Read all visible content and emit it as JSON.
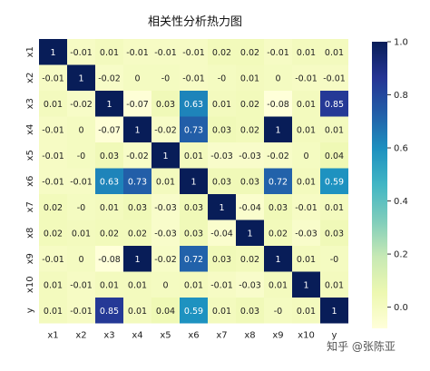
{
  "chart_data": {
    "type": "heatmap",
    "title": "相关性分析热力图",
    "xlabels": [
      "x1",
      "x2",
      "x3",
      "x4",
      "x5",
      "x6",
      "x7",
      "x8",
      "x9",
      "x10",
      "y"
    ],
    "ylabels": [
      "x1",
      "x2",
      "x3",
      "x4",
      "x5",
      "x6",
      "x7",
      "x8",
      "x9",
      "x10",
      "y"
    ],
    "values": [
      [
        1,
        -0.01,
        0.01,
        -0.01,
        -0.01,
        -0.01,
        0.02,
        0.02,
        -0.01,
        0.01,
        0.01
      ],
      [
        -0.01,
        1,
        -0.02,
        0,
        0,
        -0.01,
        0,
        0.01,
        0,
        -0.01,
        -0.01
      ],
      [
        0.01,
        -0.02,
        1,
        -0.07,
        0.03,
        0.63,
        0.01,
        0.02,
        -0.08,
        0.01,
        0.85
      ],
      [
        -0.01,
        0,
        -0.07,
        1,
        -0.02,
        0.73,
        0.03,
        0.02,
        1,
        0.01,
        0.01
      ],
      [
        -0.01,
        0,
        0.03,
        -0.02,
        1,
        0.01,
        -0.03,
        -0.03,
        -0.02,
        0,
        0.04
      ],
      [
        -0.01,
        -0.01,
        0.63,
        0.73,
        0.01,
        1,
        0.03,
        0.03,
        0.72,
        0.01,
        0.59
      ],
      [
        0.02,
        0,
        0.01,
        0.03,
        -0.03,
        0.03,
        1,
        -0.04,
        0.03,
        -0.01,
        0.01
      ],
      [
        0.02,
        0.01,
        0.02,
        0.02,
        -0.03,
        0.03,
        -0.04,
        1,
        0.02,
        -0.03,
        0.03
      ],
      [
        -0.01,
        0,
        -0.08,
        1,
        -0.02,
        0.72,
        0.03,
        0.02,
        1,
        0.01,
        0
      ],
      [
        0.01,
        -0.01,
        0.01,
        0.01,
        0,
        0.01,
        -0.01,
        -0.03,
        0.01,
        1,
        0.01
      ],
      [
        0.01,
        -0.01,
        0.85,
        0.01,
        0.04,
        0.59,
        0.01,
        0.03,
        0,
        0.01,
        1
      ]
    ],
    "display_values": [
      [
        "1",
        "-0.01",
        "0.01",
        "-0.01",
        "-0.01",
        "-0.01",
        "0.02",
        "0.02",
        "-0.01",
        "0.01",
        "0.01"
      ],
      [
        "-0.01",
        "1",
        "-0.02",
        "0",
        "-0",
        "-0.01",
        "-0",
        "0.01",
        "0",
        "-0.01",
        "-0.01"
      ],
      [
        "0.01",
        "-0.02",
        "1",
        "-0.07",
        "0.03",
        "0.63",
        "0.01",
        "0.02",
        "-0.08",
        "0.01",
        "0.85"
      ],
      [
        "-0.01",
        "0",
        "-0.07",
        "1",
        "-0.02",
        "0.73",
        "0.03",
        "0.02",
        "1",
        "0.01",
        "0.01"
      ],
      [
        "-0.01",
        "-0",
        "0.03",
        "-0.02",
        "1",
        "0.01",
        "-0.03",
        "-0.03",
        "-0.02",
        "0",
        "0.04"
      ],
      [
        "-0.01",
        "-0.01",
        "0.63",
        "0.73",
        "0.01",
        "1",
        "0.03",
        "0.03",
        "0.72",
        "0.01",
        "0.59"
      ],
      [
        "0.02",
        "-0",
        "0.01",
        "0.03",
        "-0.03",
        "0.03",
        "1",
        "-0.04",
        "0.03",
        "-0.01",
        "0.01"
      ],
      [
        "0.02",
        "0.01",
        "0.02",
        "0.02",
        "-0.03",
        "0.03",
        "-0.04",
        "1",
        "0.02",
        "-0.03",
        "0.03"
      ],
      [
        "-0.01",
        "0",
        "-0.08",
        "1",
        "-0.02",
        "0.72",
        "0.03",
        "0.02",
        "1",
        "0.01",
        "-0"
      ],
      [
        "0.01",
        "-0.01",
        "0.01",
        "0.01",
        "0",
        "0.01",
        "-0.01",
        "-0.03",
        "0.01",
        "1",
        "0.01"
      ],
      [
        "0.01",
        "-0.01",
        "0.85",
        "0.01",
        "0.04",
        "0.59",
        "0.01",
        "0.03",
        "-0",
        "0.01",
        "1"
      ]
    ],
    "colormap": "YlGnBu",
    "colorbar": {
      "min": -0.08,
      "max": 1.0,
      "ticks": [
        1.0,
        0.8,
        0.6,
        0.4,
        0.2,
        0.0
      ],
      "tick_labels": [
        "1.0",
        "0.8",
        "0.6",
        "0.4",
        "0.2",
        "0.0"
      ]
    },
    "grid": false,
    "legend": "colorbar-right"
  },
  "watermark": "知乎 @张陈亚",
  "colors": {
    "background": "#ffffff",
    "cell_border": "#ffffff",
    "text_dark": "#222222",
    "text_light": "#ffffff"
  }
}
